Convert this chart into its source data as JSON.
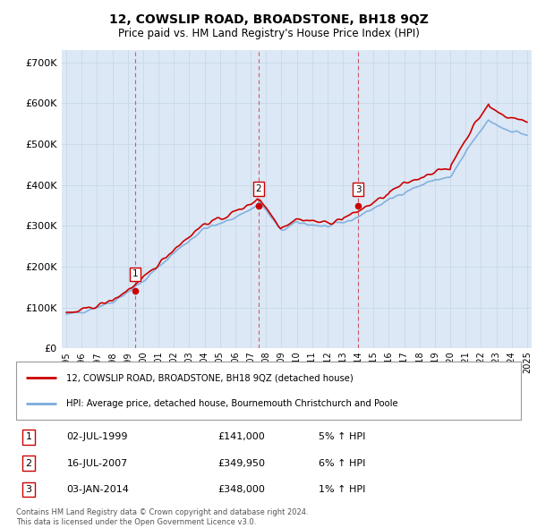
{
  "title": "12, COWSLIP ROAD, BROADSTONE, BH18 9QZ",
  "subtitle": "Price paid vs. HM Land Registry's House Price Index (HPI)",
  "legend_line1": "12, COWSLIP ROAD, BROADSTONE, BH18 9QZ (detached house)",
  "legend_line2": "HPI: Average price, detached house, Bournemouth Christchurch and Poole",
  "footer1": "Contains HM Land Registry data © Crown copyright and database right 2024.",
  "footer2": "This data is licensed under the Open Government Licence v3.0.",
  "transactions": [
    {
      "num": "1",
      "date": "02-JUL-1999",
      "price": "£141,000",
      "hpi": "5% ↑ HPI"
    },
    {
      "num": "2",
      "date": "16-JUL-2007",
      "price": "£349,950",
      "hpi": "6% ↑ HPI"
    },
    {
      "num": "3",
      "date": "03-JAN-2014",
      "price": "£348,000",
      "hpi": "1% ↑ HPI"
    }
  ],
  "sale_years": [
    1999.5,
    2007.5,
    2014.0
  ],
  "sale_prices": [
    141000,
    349950,
    348000
  ],
  "hpi_color": "#7aabdb",
  "price_color": "#cc0000",
  "grid_color": "#c8d8e8",
  "background_color": "#ffffff",
  "plot_bg_color": "#dce8f5",
  "ylim": [
    0,
    730000
  ],
  "yticks": [
    0,
    100000,
    200000,
    300000,
    400000,
    500000,
    600000,
    700000
  ],
  "xmin": 1994.7,
  "xmax": 2025.3,
  "xticks": [
    1995,
    1996,
    1997,
    1998,
    1999,
    2000,
    2001,
    2002,
    2003,
    2004,
    2005,
    2006,
    2007,
    2008,
    2009,
    2010,
    2011,
    2012,
    2013,
    2014,
    2015,
    2016,
    2017,
    2018,
    2019,
    2020,
    2021,
    2022,
    2023,
    2024,
    2025
  ]
}
